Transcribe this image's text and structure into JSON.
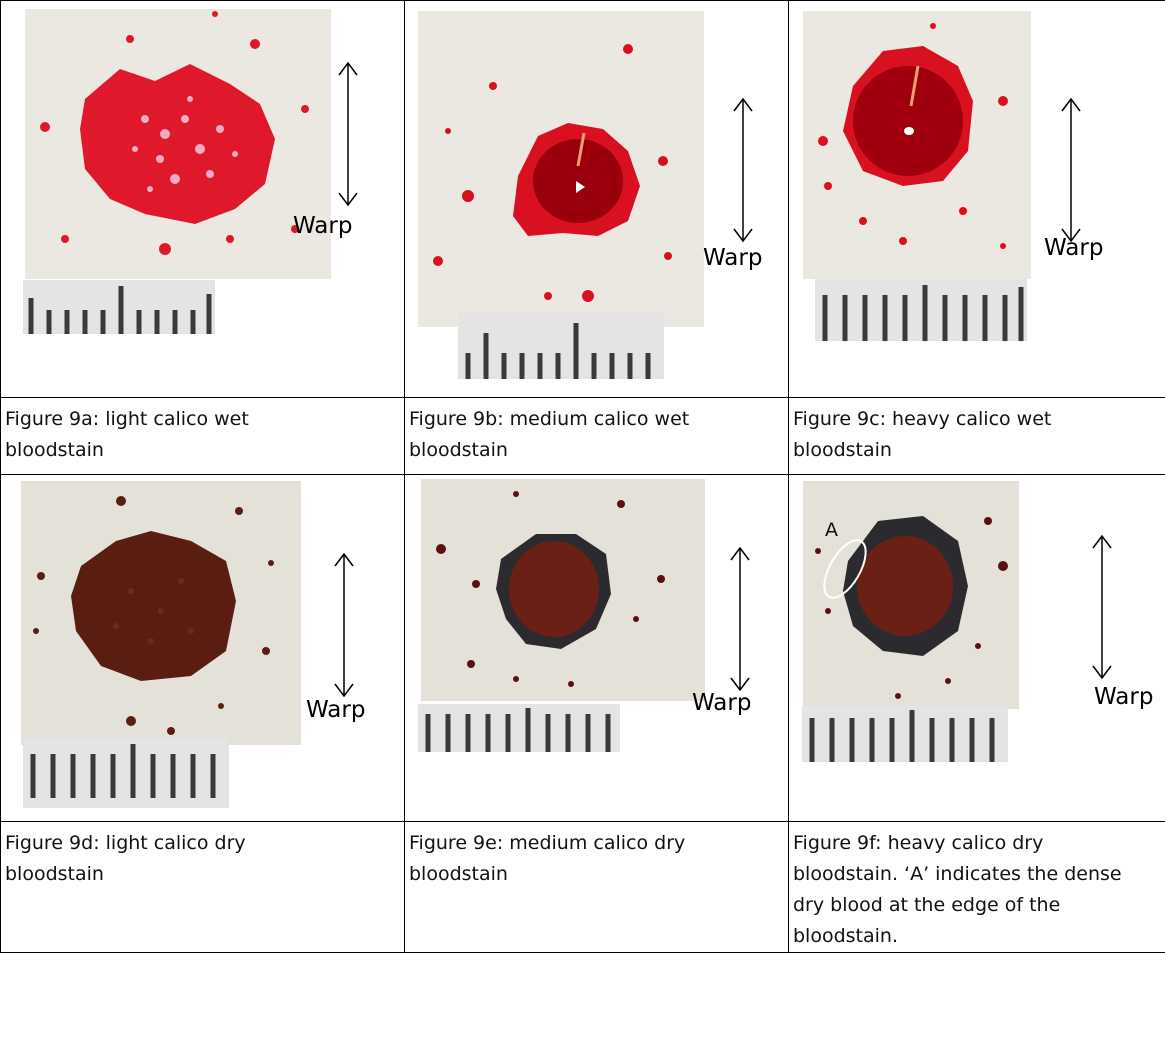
{
  "figures": [
    {
      "id": "9a",
      "caption": "Figure 9a: light calico wet bloodstain",
      "warp": "Warp"
    },
    {
      "id": "9b",
      "caption": "Figure 9b: medium calico wet bloodstain",
      "warp": "Warp"
    },
    {
      "id": "9c",
      "caption": "Figure 9c: heavy calico wet bloodstain",
      "warp": "Warp"
    },
    {
      "id": "9d",
      "caption": "Figure 9d: light calico dry bloodstain",
      "warp": "Warp"
    },
    {
      "id": "9e",
      "caption": "Figure 9e: medium calico dry bloodstain",
      "warp": "Warp"
    },
    {
      "id": "9f",
      "caption": "Figure 9f: heavy calico dry bloodstain. ‘A’ indicates the dense dry blood at the edge of the bloodstain.",
      "warp": "Warp",
      "annotation": "A"
    }
  ],
  "colors": {
    "fabric": "#e9e6de",
    "wet_light": "#e0182c",
    "wet_dark": "#a3000e",
    "dry": "#5a1d12",
    "dry_edge": "#2b2a2e"
  }
}
